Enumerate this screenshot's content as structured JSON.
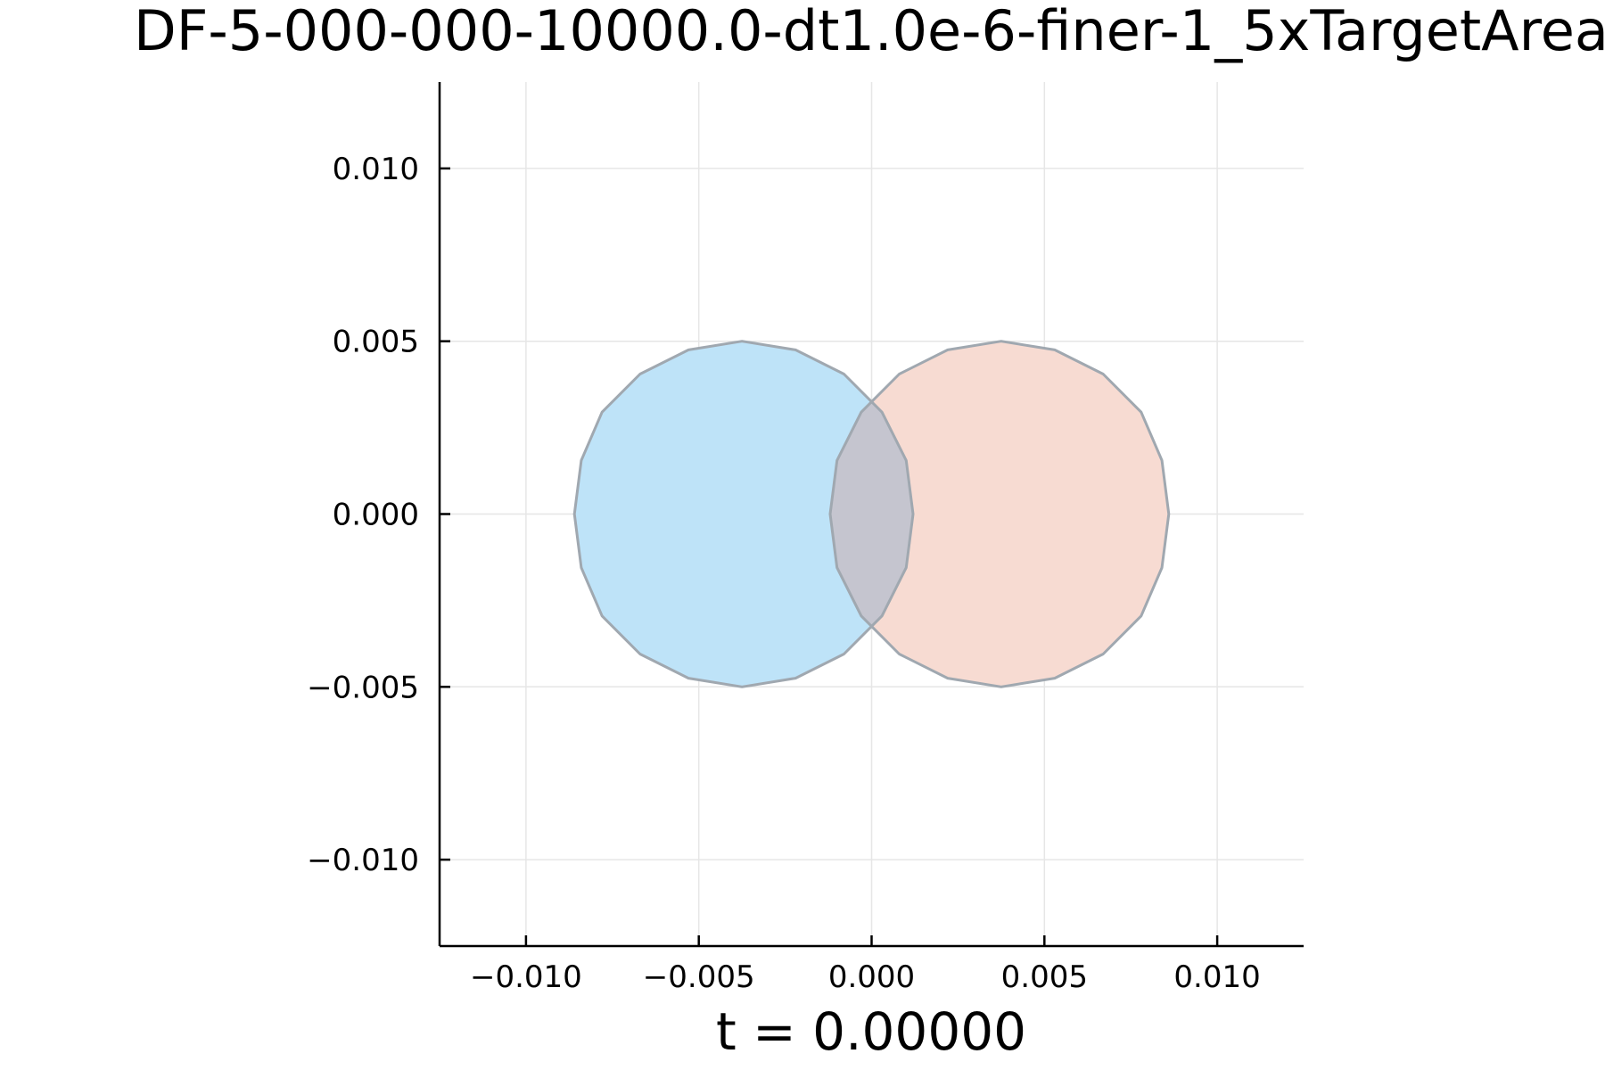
{
  "chart_data": {
    "type": "area",
    "title": "DF-5-000-000-10000.0-dt1.0e-6-finer-1_5xTargetArea",
    "xlabel": "t = 0.00000",
    "ylabel": "",
    "xlim": [
      -0.0125,
      0.0125
    ],
    "ylim": [
      -0.0125,
      0.0125
    ],
    "grid": true,
    "legend": "none",
    "x_ticks": [
      -0.01,
      -0.005,
      0.0,
      0.005,
      0.01
    ],
    "x_tick_labels": [
      "−0.010",
      "−0.005",
      "0.000",
      "0.005",
      "0.010"
    ],
    "y_ticks": [
      0.01,
      0.005,
      0.0,
      -0.005,
      -0.01
    ],
    "y_tick_labels": [
      "0.010",
      "0.005",
      "0.000",
      "−0.005",
      "−0.010"
    ],
    "series": [
      {
        "fill": "#bee3f8",
        "center": [
          -0.00375,
          0.0
        ],
        "vertices": [
          [
            -0.0086,
            0.0
          ],
          [
            -0.0084,
            0.00155
          ],
          [
            -0.0078,
            0.00295
          ],
          [
            -0.0067,
            0.00405
          ],
          [
            -0.0053,
            0.00475
          ],
          [
            -0.00375,
            0.005
          ],
          [
            -0.0022,
            0.00475
          ],
          [
            -0.0008,
            0.00405
          ],
          [
            0.0003,
            0.00295
          ],
          [
            0.001,
            0.00155
          ],
          [
            0.0012,
            0.0
          ],
          [
            0.001,
            -0.00155
          ],
          [
            0.0003,
            -0.00295
          ],
          [
            -0.0008,
            -0.00405
          ],
          [
            -0.0022,
            -0.00475
          ],
          [
            -0.00375,
            -0.005
          ],
          [
            -0.0053,
            -0.00475
          ],
          [
            -0.0067,
            -0.00405
          ],
          [
            -0.0078,
            -0.00295
          ],
          [
            -0.0084,
            -0.00155
          ]
        ]
      },
      {
        "fill": "#f7dbd2",
        "center": [
          0.00375,
          0.0
        ],
        "vertices": [
          [
            -0.0012,
            0.0
          ],
          [
            -0.001,
            0.00155
          ],
          [
            -0.0003,
            0.00295
          ],
          [
            0.0008,
            0.00405
          ],
          [
            0.0022,
            0.00475
          ],
          [
            0.00375,
            0.005
          ],
          [
            0.0053,
            0.00475
          ],
          [
            0.0067,
            0.00405
          ],
          [
            0.0078,
            0.00295
          ],
          [
            0.0084,
            0.00155
          ],
          [
            0.0086,
            0.0
          ],
          [
            0.0084,
            -0.00155
          ],
          [
            0.0078,
            -0.00295
          ],
          [
            0.0067,
            -0.00405
          ],
          [
            0.0053,
            -0.00475
          ],
          [
            0.00375,
            -0.005
          ],
          [
            0.0022,
            -0.00475
          ],
          [
            0.0008,
            -0.00405
          ],
          [
            -0.0003,
            -0.00295
          ],
          [
            -0.001,
            -0.00155
          ]
        ]
      }
    ],
    "overlap_fill": "#c5c5cf",
    "outline_color": "#a0a8b0"
  }
}
